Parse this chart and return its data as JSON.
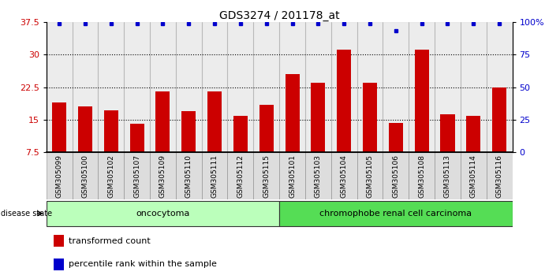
{
  "title": "GDS3274 / 201178_at",
  "samples": [
    "GSM305099",
    "GSM305100",
    "GSM305102",
    "GSM305107",
    "GSM305109",
    "GSM305110",
    "GSM305111",
    "GSM305112",
    "GSM305115",
    "GSM305101",
    "GSM305103",
    "GSM305104",
    "GSM305105",
    "GSM305106",
    "GSM305108",
    "GSM305113",
    "GSM305114",
    "GSM305116"
  ],
  "red_values": [
    19.0,
    18.0,
    17.2,
    14.0,
    21.5,
    17.0,
    21.5,
    15.8,
    18.5,
    25.5,
    23.5,
    31.2,
    23.5,
    14.2,
    31.2,
    16.2,
    15.8,
    22.5
  ],
  "blue_values": [
    37.2,
    37.2,
    37.2,
    37.2,
    37.2,
    37.2,
    37.2,
    37.2,
    37.2,
    37.2,
    37.2,
    37.2,
    37.2,
    35.5,
    37.2,
    37.2,
    37.2,
    37.2
  ],
  "oncocytoma_count": 9,
  "chromophobe_count": 9,
  "ymin": 7.5,
  "ymax": 37.5,
  "yticks_left": [
    7.5,
    15.0,
    22.5,
    30.0,
    37.5
  ],
  "ytick_labels_left": [
    "7.5",
    "15",
    "22.5",
    "30",
    "37.5"
  ],
  "ytick_labels_right": [
    "0",
    "25",
    "50",
    "75",
    "100%"
  ],
  "grid_yticks": [
    15.0,
    22.5,
    30.0
  ],
  "bar_color": "#cc0000",
  "dot_color": "#0000cc",
  "onco_color": "#bbffbb",
  "chrom_color": "#55dd55",
  "tick_label_color_left": "#cc0000",
  "tick_label_color_right": "#0000cc",
  "legend_red_label": "transformed count",
  "legend_blue_label": "percentile rank within the sample",
  "disease_label": "disease state",
  "onco_label": "oncocytoma",
  "chrom_label": "chromophobe renal cell carcinoma"
}
